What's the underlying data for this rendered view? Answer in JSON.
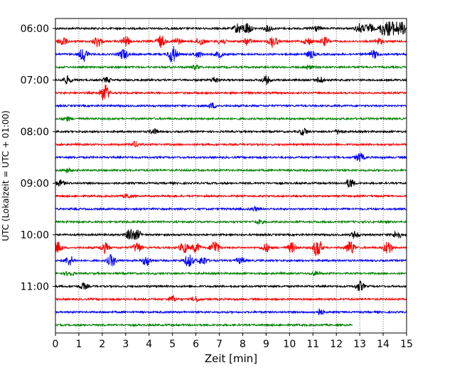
{
  "chart_data": {
    "type": "line",
    "title": "",
    "xlabel": "Zeit  [min]",
    "ylabel": "UTC (Lokalzeit = UTC + 01:00)",
    "xlim": [
      0,
      15
    ],
    "x_ticks": [
      "0",
      "1",
      "2",
      "3",
      "4",
      "5",
      "6",
      "7",
      "8",
      "9",
      "10",
      "11",
      "12",
      "13",
      "14",
      "15"
    ],
    "y_ticks": [
      "06:00",
      "07:00",
      "08:00",
      "09:00",
      "10:00",
      "11:00"
    ],
    "vertical_gridlines": true,
    "gridline_style": "dotted",
    "minutes_per_trace": 15,
    "trace_colors": [
      "#000000",
      "#ff0000",
      "#0000ff",
      "#008000"
    ],
    "traces": [
      {
        "start": "06:00",
        "color": "#000000",
        "events": [
          [
            7.8,
            1.0
          ],
          [
            8.2,
            1.2
          ],
          [
            9.1,
            0.6
          ],
          [
            11.1,
            0.6
          ],
          [
            13.0,
            0.9
          ],
          [
            13.4,
            1.0
          ],
          [
            14.0,
            1.3
          ],
          [
            14.3,
            1.4
          ],
          [
            14.6,
            1.3
          ],
          [
            14.9,
            1.2
          ]
        ]
      },
      {
        "start": "06:15",
        "color": "#ff0000",
        "events": [
          [
            0.3,
            1.0
          ],
          [
            1.8,
            1.1
          ],
          [
            3.0,
            1.0
          ],
          [
            4.5,
            1.2
          ],
          [
            5.2,
            0.7
          ],
          [
            6.2,
            0.8
          ],
          [
            7.1,
            0.6
          ],
          [
            8.2,
            0.6
          ],
          [
            9.3,
            1.2
          ],
          [
            10.8,
            0.7
          ],
          [
            11.5,
            0.8
          ],
          [
            13.8,
            0.6
          ]
        ]
      },
      {
        "start": "06:30",
        "color": "#0000ff",
        "events": [
          [
            1.2,
            1.4
          ],
          [
            2.9,
            1.1
          ],
          [
            5.0,
            1.8
          ],
          [
            6.1,
            0.6
          ],
          [
            7.0,
            0.6
          ],
          [
            10.9,
            0.7
          ],
          [
            13.6,
            0.8
          ]
        ]
      },
      {
        "start": "06:45",
        "color": "#008000",
        "events": [
          [
            6.0,
            0.4
          ],
          [
            10.8,
            0.4
          ]
        ]
      },
      {
        "start": "07:00",
        "color": "#000000",
        "events": [
          [
            0.5,
            0.7
          ],
          [
            2.2,
            0.5
          ],
          [
            6.8,
            0.6
          ],
          [
            9.0,
            0.8
          ],
          [
            11.3,
            0.6
          ]
        ]
      },
      {
        "start": "07:15",
        "color": "#ff0000",
        "events": [
          [
            2.1,
            1.9
          ]
        ]
      },
      {
        "start": "07:30",
        "color": "#0000ff",
        "events": [
          [
            6.7,
            0.5
          ]
        ]
      },
      {
        "start": "07:45",
        "color": "#008000",
        "events": [
          [
            0.5,
            0.4
          ]
        ]
      },
      {
        "start": "08:00",
        "color": "#000000",
        "events": [
          [
            4.2,
            0.5
          ],
          [
            10.6,
            0.7
          ],
          [
            12.1,
            0.5
          ]
        ]
      },
      {
        "start": "08:15",
        "color": "#ff0000",
        "events": [
          [
            3.4,
            0.5
          ]
        ]
      },
      {
        "start": "08:30",
        "color": "#0000ff",
        "events": [
          [
            13.0,
            0.9
          ]
        ]
      },
      {
        "start": "08:45",
        "color": "#008000",
        "events": [
          [
            0.5,
            0.4
          ]
        ]
      },
      {
        "start": "09:00",
        "color": "#000000",
        "events": [
          [
            0.2,
            0.6
          ],
          [
            12.6,
            0.9
          ]
        ]
      },
      {
        "start": "09:15",
        "color": "#ff0000",
        "events": [
          [
            3.1,
            0.4
          ]
        ]
      },
      {
        "start": "09:30",
        "color": "#0000ff",
        "events": [
          [
            8.5,
            0.4
          ]
        ]
      },
      {
        "start": "09:45",
        "color": "#008000",
        "events": [
          [
            8.7,
            0.4
          ]
        ]
      },
      {
        "start": "10:00",
        "color": "#000000",
        "events": [
          [
            3.2,
            1.2
          ],
          [
            3.5,
            0.8
          ],
          [
            12.8,
            0.7
          ],
          [
            14.6,
            0.8
          ]
        ]
      },
      {
        "start": "10:15",
        "color": "#ff0000",
        "events": [
          [
            0.1,
            1.1
          ],
          [
            2.1,
            1.0
          ],
          [
            3.5,
            1.1
          ],
          [
            5.5,
            1.1
          ],
          [
            6.0,
            1.0
          ],
          [
            6.8,
            1.5
          ],
          [
            9.0,
            0.8
          ],
          [
            10.1,
            1.0
          ],
          [
            11.2,
            2.0
          ],
          [
            12.6,
            1.5
          ],
          [
            14.2,
            1.4
          ]
        ]
      },
      {
        "start": "10:30",
        "color": "#0000ff",
        "events": [
          [
            0.6,
            1.0
          ],
          [
            2.4,
            1.2
          ],
          [
            3.9,
            1.0
          ],
          [
            5.7,
            1.3
          ],
          [
            6.3,
            0.9
          ],
          [
            7.9,
            0.6
          ]
        ]
      },
      {
        "start": "10:45",
        "color": "#008000",
        "events": [
          [
            0.6,
            0.5
          ],
          [
            11.1,
            0.4
          ]
        ]
      },
      {
        "start": "11:00",
        "color": "#000000",
        "events": [
          [
            1.2,
            0.6
          ],
          [
            13.0,
            1.0
          ]
        ]
      },
      {
        "start": "11:15",
        "color": "#ff0000",
        "events": [
          [
            5.0,
            0.6
          ],
          [
            6.0,
            0.5
          ]
        ]
      },
      {
        "start": "11:30",
        "color": "#0000ff",
        "events": [
          [
            11.3,
            0.6
          ]
        ]
      },
      {
        "start": "11:45",
        "color": "#008000",
        "events": [],
        "end_minute": 12.7
      }
    ]
  }
}
